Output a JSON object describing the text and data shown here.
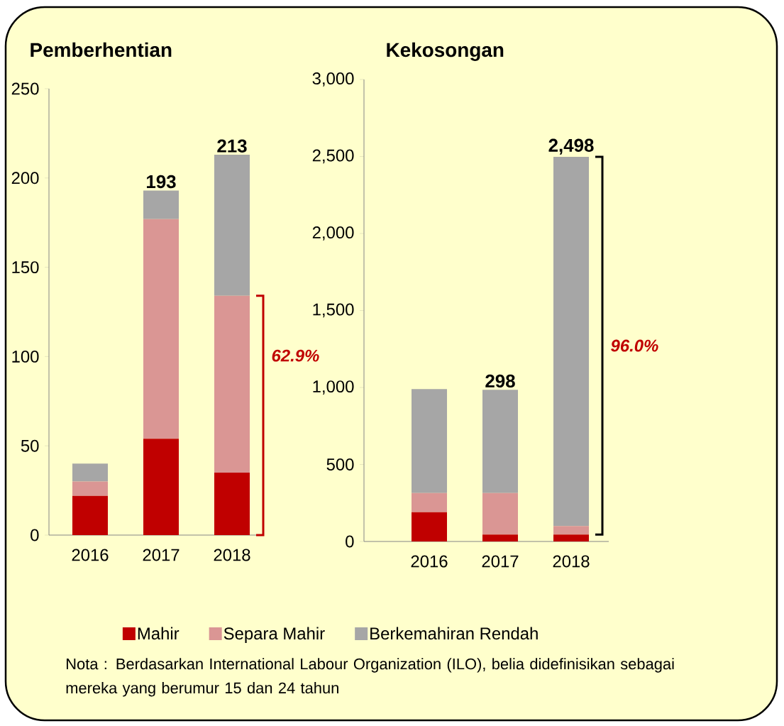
{
  "chart_data": [
    {
      "type": "bar",
      "title": "Pemberhentian",
      "categories": [
        "2016",
        "2017",
        "2018"
      ],
      "stacked": true,
      "series": [
        {
          "name": "Mahir",
          "color": "#c00000",
          "values": [
            22,
            54,
            35
          ]
        },
        {
          "name": "Separa Mahir",
          "color": "#da9694",
          "values": [
            8,
            123,
            99
          ]
        },
        {
          "name": "Berkemahiran Rendah",
          "color": "#a6a6a6",
          "values": [
            10,
            16,
            79
          ]
        }
      ],
      "ylim": [
        0,
        250
      ],
      "yticks": [
        0,
        50,
        100,
        150,
        200,
        250
      ],
      "totals": [
        null,
        "193",
        "213"
      ],
      "legend": "bottom",
      "annotations": [
        "62.9%"
      ]
    },
    {
      "type": "bar",
      "title": "Kekosongan",
      "categories": [
        "2016",
        "2017",
        "2018"
      ],
      "stacked": true,
      "series": [
        {
          "color": "#c00000",
          "values": [
            190,
            45,
            45
          ]
        },
        {
          "color": "#da9694",
          "values": [
            125,
            270,
            55
          ]
        },
        {
          "color": "#a6a6a6",
          "values": [
            675,
            670,
            2398
          ]
        }
      ],
      "ylim": [
        0,
        3000
      ],
      "yticks": [
        0,
        500,
        {
          "value": 1000,
          "label": "1,000"
        },
        {
          "value": 1500,
          "label": "1,500"
        },
        {
          "value": 2000,
          "label": "2,000"
        },
        {
          "value": 2500,
          "label": "2,500"
        },
        {
          "value": 3000,
          "label": "3,000"
        }
      ],
      "totals": [
        null,
        null,
        "2,498"
      ],
      "annotations": [
        {
          "text": "298",
          "x": "2017",
          "y": 985
        },
        "96.0%",
        "Nota : Berdasarkan International Labour Organization (ILO), belia didefinisikan sebagai mereka yang berumur 15 dan 24 tahun"
      ]
    }
  ]
}
